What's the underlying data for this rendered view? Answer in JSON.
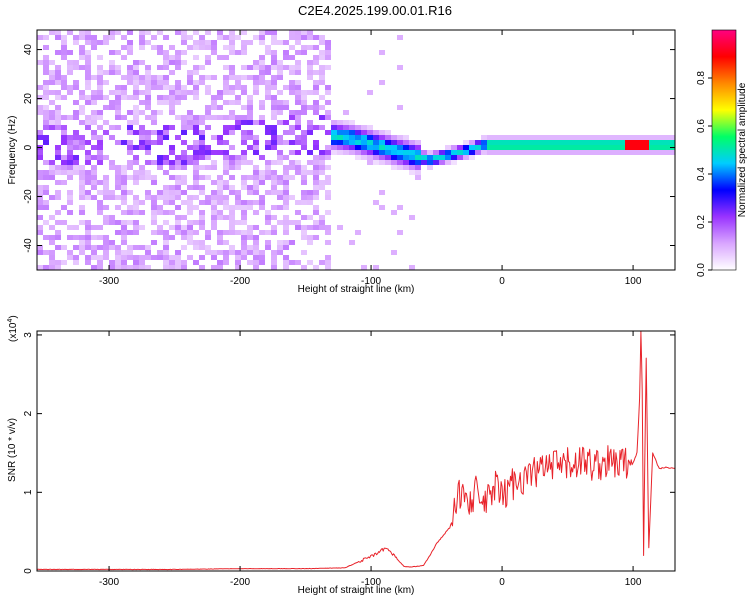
{
  "title": "C2E4.2025.199.00.01.R16",
  "chart_data": [
    {
      "type": "heatmap",
      "title": "C2E4.2025.199.00.01.R16",
      "xlabel": "Height of straight line (km)",
      "ylabel": "Frequency (Hz)",
      "xlim": [
        -355,
        132
      ],
      "ylim": [
        -50,
        48
      ],
      "xticks": [
        -300,
        -200,
        -100,
        0,
        100
      ],
      "yticks": [
        -40,
        -20,
        0,
        20,
        40
      ],
      "colorbar": {
        "label": "Normalized spectral amplitude",
        "range": [
          0,
          1
        ],
        "ticks": [
          "0.0",
          "0.2",
          "0.4",
          "0.6",
          "0.8"
        ],
        "tick_values": [
          0,
          0.2,
          0.4,
          0.6,
          0.8
        ],
        "colors": [
          "#ffffff",
          "#d9a6ff",
          "#9933ff",
          "#0000ff",
          "#00ccff",
          "#00ff66",
          "#ffff00",
          "#ff8800",
          "#ff0000",
          "#ff0080"
        ]
      },
      "ridge": [
        {
          "x": -355,
          "y": 1
        },
        {
          "x": -300,
          "y": 2
        },
        {
          "x": -250,
          "y": 1
        },
        {
          "x": -200,
          "y": 3
        },
        {
          "x": -150,
          "y": 5
        },
        {
          "x": -130,
          "y": 5
        },
        {
          "x": -110,
          "y": 3
        },
        {
          "x": -90,
          "y": 0
        },
        {
          "x": -70,
          "y": -3
        },
        {
          "x": -55,
          "y": -5
        },
        {
          "x": -40,
          "y": -3
        },
        {
          "x": -25,
          "y": -1
        },
        {
          "x": -15,
          "y": 1
        },
        {
          "x": 0,
          "y": 1
        },
        {
          "x": 40,
          "y": 1
        },
        {
          "x": 100,
          "y": 1
        },
        {
          "x": 132,
          "y": 1
        }
      ]
    },
    {
      "type": "line",
      "xlabel": "Height of straight line (km)",
      "ylabel": "SNR (10 * v/v)",
      "multiplier": "(x10",
      "multiplier_exp": "4",
      "multiplier_close": ")",
      "xlim": [
        -355,
        132
      ],
      "ylim": [
        0,
        3.05
      ],
      "xticks": [
        -300,
        -200,
        -100,
        0,
        100
      ],
      "yticks": [
        0,
        1,
        2,
        3
      ],
      "color": "#e8232a",
      "series": [
        {
          "x": [
            -355,
            -300,
            -250,
            -200,
            -150,
            -120,
            -105,
            -95,
            -90,
            -85,
            -80,
            -75,
            -70,
            -60,
            -55,
            -50,
            -45,
            -40,
            -35,
            -32,
            -30,
            -28,
            -25,
            -20,
            -15,
            -10,
            -5,
            0,
            5,
            10,
            20,
            30,
            40,
            50,
            60,
            70,
            80,
            90,
            95,
            100,
            103,
            105,
            106,
            107,
            108,
            110,
            112,
            115,
            120,
            125,
            132
          ],
          "y": [
            0.02,
            0.02,
            0.02,
            0.03,
            0.03,
            0.04,
            0.15,
            0.22,
            0.28,
            0.25,
            0.15,
            0.06,
            0.05,
            0.07,
            0.2,
            0.35,
            0.45,
            0.55,
            0.8,
            1.0,
            0.95,
            1.15,
            0.9,
            1.0,
            0.85,
            0.9,
            1.1,
            0.9,
            1.05,
            1.15,
            1.2,
            1.3,
            1.32,
            1.35,
            1.4,
            1.35,
            1.38,
            1.37,
            1.38,
            1.38,
            1.5,
            2.2,
            3.05,
            2.3,
            0.2,
            2.7,
            0.3,
            1.5,
            1.3,
            1.32,
            1.3
          ]
        }
      ]
    }
  ]
}
